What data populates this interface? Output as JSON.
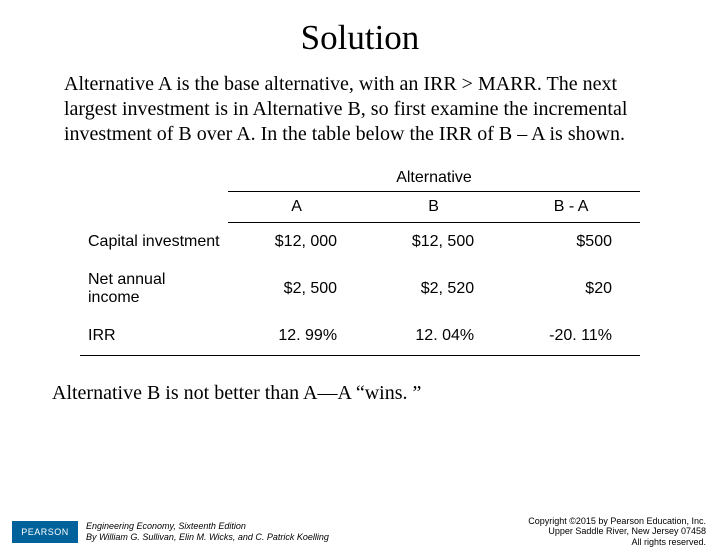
{
  "title": "Solution",
  "paragraph": "Alternative A is the base alternative, with an IRR > MARR. The next largest investment is in Alternative B, so first examine the incremental investment of B over A.  In the table below the IRR of B – A is shown.",
  "table": {
    "super_header": "Alternative",
    "columns": {
      "a": "A",
      "b": "B",
      "ba": "B - A"
    },
    "rows": [
      {
        "label": "Capital investment",
        "a": "$12, 000",
        "b": "$12, 500",
        "ba": "$500"
      },
      {
        "label": "Net annual income",
        "a": "$2, 500",
        "b": "$2, 520",
        "ba": "$20"
      },
      {
        "label": "IRR",
        "a": "12. 99%",
        "b": "12. 04%",
        "ba": "-20. 11%"
      }
    ]
  },
  "conclusion": "Alternative B is not better than A—A “wins. ”",
  "footer": {
    "logo": "PEARSON",
    "credits_line1": "Engineering Economy, Sixteenth Edition",
    "credits_line2": "By William G. Sullivan, Elin M. Wicks, and C. Patrick Koelling",
    "copy_line1": "Copyright ©2015 by Pearson Education, Inc.",
    "copy_line2": "Upper Saddle River, New Jersey 07458",
    "copy_line3": "All rights reserved."
  },
  "colors": {
    "background": "#ffffff",
    "text": "#000000",
    "logo_bg": "#00629b",
    "rule": "#000000"
  }
}
